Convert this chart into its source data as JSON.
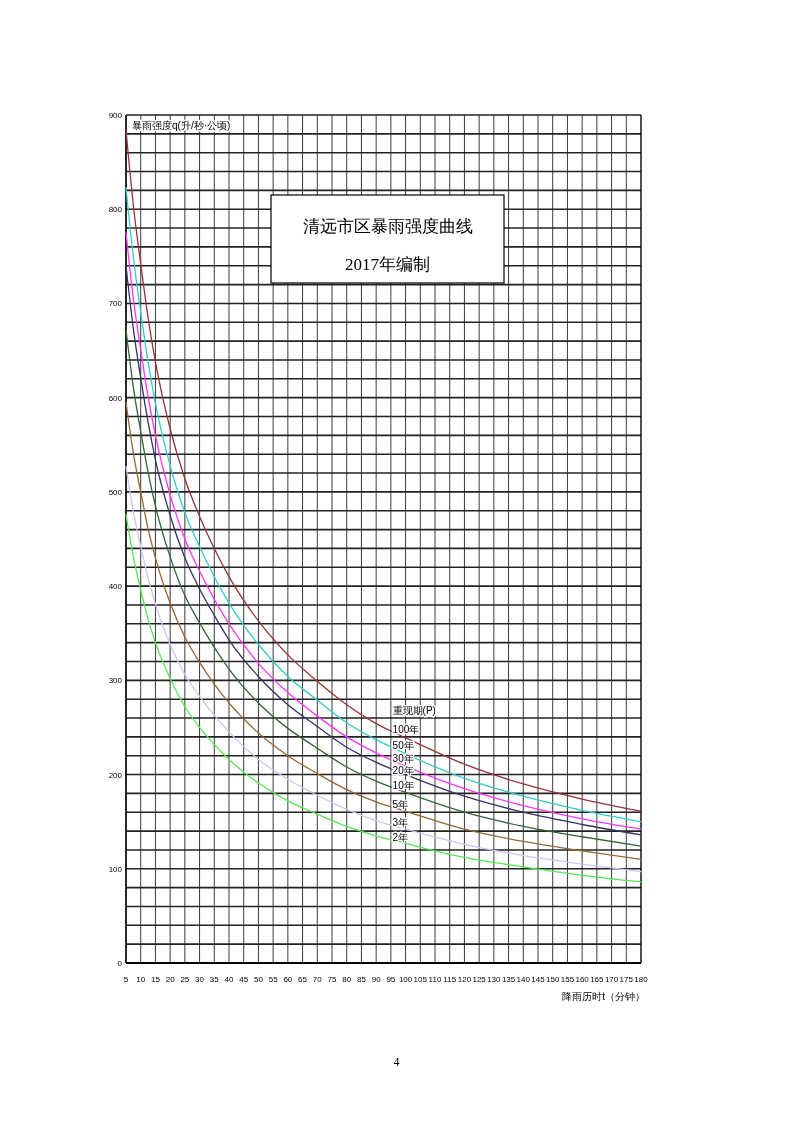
{
  "chart_data": {
    "type": "line",
    "title": "清远市区暴雨强度曲线",
    "subtitle": "2017年编制",
    "xlabel": "降雨历时t（分钟）",
    "ylabel": "暴雨强度q(升/秒·公顷)",
    "legend_title": "重现期(P)",
    "annotations": [
      "4"
    ],
    "x": [
      5,
      7.5,
      10,
      12.5,
      15,
      20,
      25,
      30,
      35,
      40,
      50,
      60,
      70,
      80,
      90,
      100,
      120,
      140,
      160,
      180
    ],
    "series": [
      {
        "name": "100年",
        "color": "#993333",
        "values": [
          884,
          804,
          742,
          685,
          638,
          567,
          514,
          474,
          440,
          410,
          363,
          327,
          299,
          274,
          254,
          239,
          211,
          190,
          174,
          161
        ]
      },
      {
        "name": "50年",
        "color": "#33cccc",
        "values": [
          823,
          749,
          691,
          638,
          594,
          528,
          478,
          442,
          410,
          382,
          338,
          304,
          279,
          255,
          237,
          222,
          196,
          177,
          162,
          150
        ]
      },
      {
        "name": "30年",
        "color": "#ff33ff",
        "values": [
          775,
          705,
          651,
          601,
          560,
          497,
          450,
          416,
          386,
          360,
          318,
          287,
          262,
          240,
          223,
          209,
          185,
          167,
          153,
          142
        ]
      },
      {
        "name": "20年",
        "color": "#333366",
        "values": [
          740,
          673,
          621,
          574,
          534,
          475,
          430,
          397,
          369,
          343,
          304,
          274,
          251,
          229,
          213,
          200,
          177,
          160,
          147,
          136
        ]
      },
      {
        "name": "10年",
        "color": "#336633",
        "values": [
          672,
          611,
          564,
          521,
          485,
          431,
          390,
          361,
          335,
          312,
          276,
          249,
          228,
          208,
          193,
          181,
          160,
          145,
          134,
          124
        ]
      },
      {
        "name": "5年",
        "color": "#996633",
        "values": [
          595,
          541,
          500,
          461,
          430,
          382,
          346,
          319,
          296,
          276,
          244,
          220,
          201,
          184,
          171,
          161,
          142,
          129,
          119,
          110
        ]
      },
      {
        "name": "3年",
        "color": "#c8c8f5",
        "values": [
          527,
          479,
          442,
          409,
          381,
          338,
          306,
          283,
          263,
          245,
          216,
          195,
          178,
          163,
          151,
          142,
          126,
          114,
          105,
          97
        ]
      },
      {
        "name": "2年",
        "color": "#55e855",
        "values": [
          476,
          431,
          396,
          365,
          340,
          302,
          272,
          250,
          232,
          216,
          191,
          172,
          158,
          145,
          135,
          127,
          112,
          102,
          93,
          86
        ]
      }
    ],
    "xlim": [
      5,
      180
    ],
    "xticks": [
      5,
      10,
      15,
      20,
      25,
      30,
      35,
      40,
      45,
      50,
      55,
      60,
      65,
      70,
      75,
      80,
      85,
      90,
      95,
      100,
      105,
      110,
      115,
      120,
      125,
      130,
      135,
      140,
      145,
      150,
      155,
      160,
      165,
      170,
      175,
      180
    ],
    "ylim": [
      0,
      900
    ],
    "yticks": [
      0,
      {
        "value": 20,
        "label": null
      },
      {
        "value": 40,
        "label": null
      },
      {
        "value": 60,
        "label": null
      },
      {
        "value": 80,
        "label": null
      },
      100,
      {
        "value": 120,
        "label": null
      },
      {
        "value": 140,
        "label": null
      },
      {
        "value": 160,
        "label": null
      },
      {
        "value": 180,
        "label": null
      },
      200,
      {
        "value": 220,
        "label": null
      },
      {
        "value": 240,
        "label": null
      },
      {
        "value": 260,
        "label": null
      },
      {
        "value": 280,
        "label": null
      },
      300,
      {
        "value": 320,
        "label": null
      },
      {
        "value": 340,
        "label": null
      },
      {
        "value": 360,
        "label": null
      },
      {
        "value": 380,
        "label": null
      },
      400,
      {
        "value": 420,
        "label": null
      },
      {
        "value": 440,
        "label": null
      },
      {
        "value": 460,
        "label": null
      },
      {
        "value": 480,
        "label": null
      },
      500,
      {
        "value": 520,
        "label": null
      },
      {
        "value": 540,
        "label": null
      },
      {
        "value": 560,
        "label": null
      },
      {
        "value": 580,
        "label": null
      },
      600,
      {
        "value": 620,
        "label": null
      },
      {
        "value": 640,
        "label": null
      },
      {
        "value": 660,
        "label": null
      },
      {
        "value": 680,
        "label": null
      },
      700,
      {
        "value": 720,
        "label": null
      },
      {
        "value": 740,
        "label": null
      },
      {
        "value": 760,
        "label": null
      },
      {
        "value": 780,
        "label": null
      },
      800,
      {
        "value": 820,
        "label": null
      },
      {
        "value": 840,
        "label": null
      },
      {
        "value": 860,
        "label": null
      },
      {
        "value": 880,
        "label": null
      },
      900
    ],
    "grid": true
  }
}
